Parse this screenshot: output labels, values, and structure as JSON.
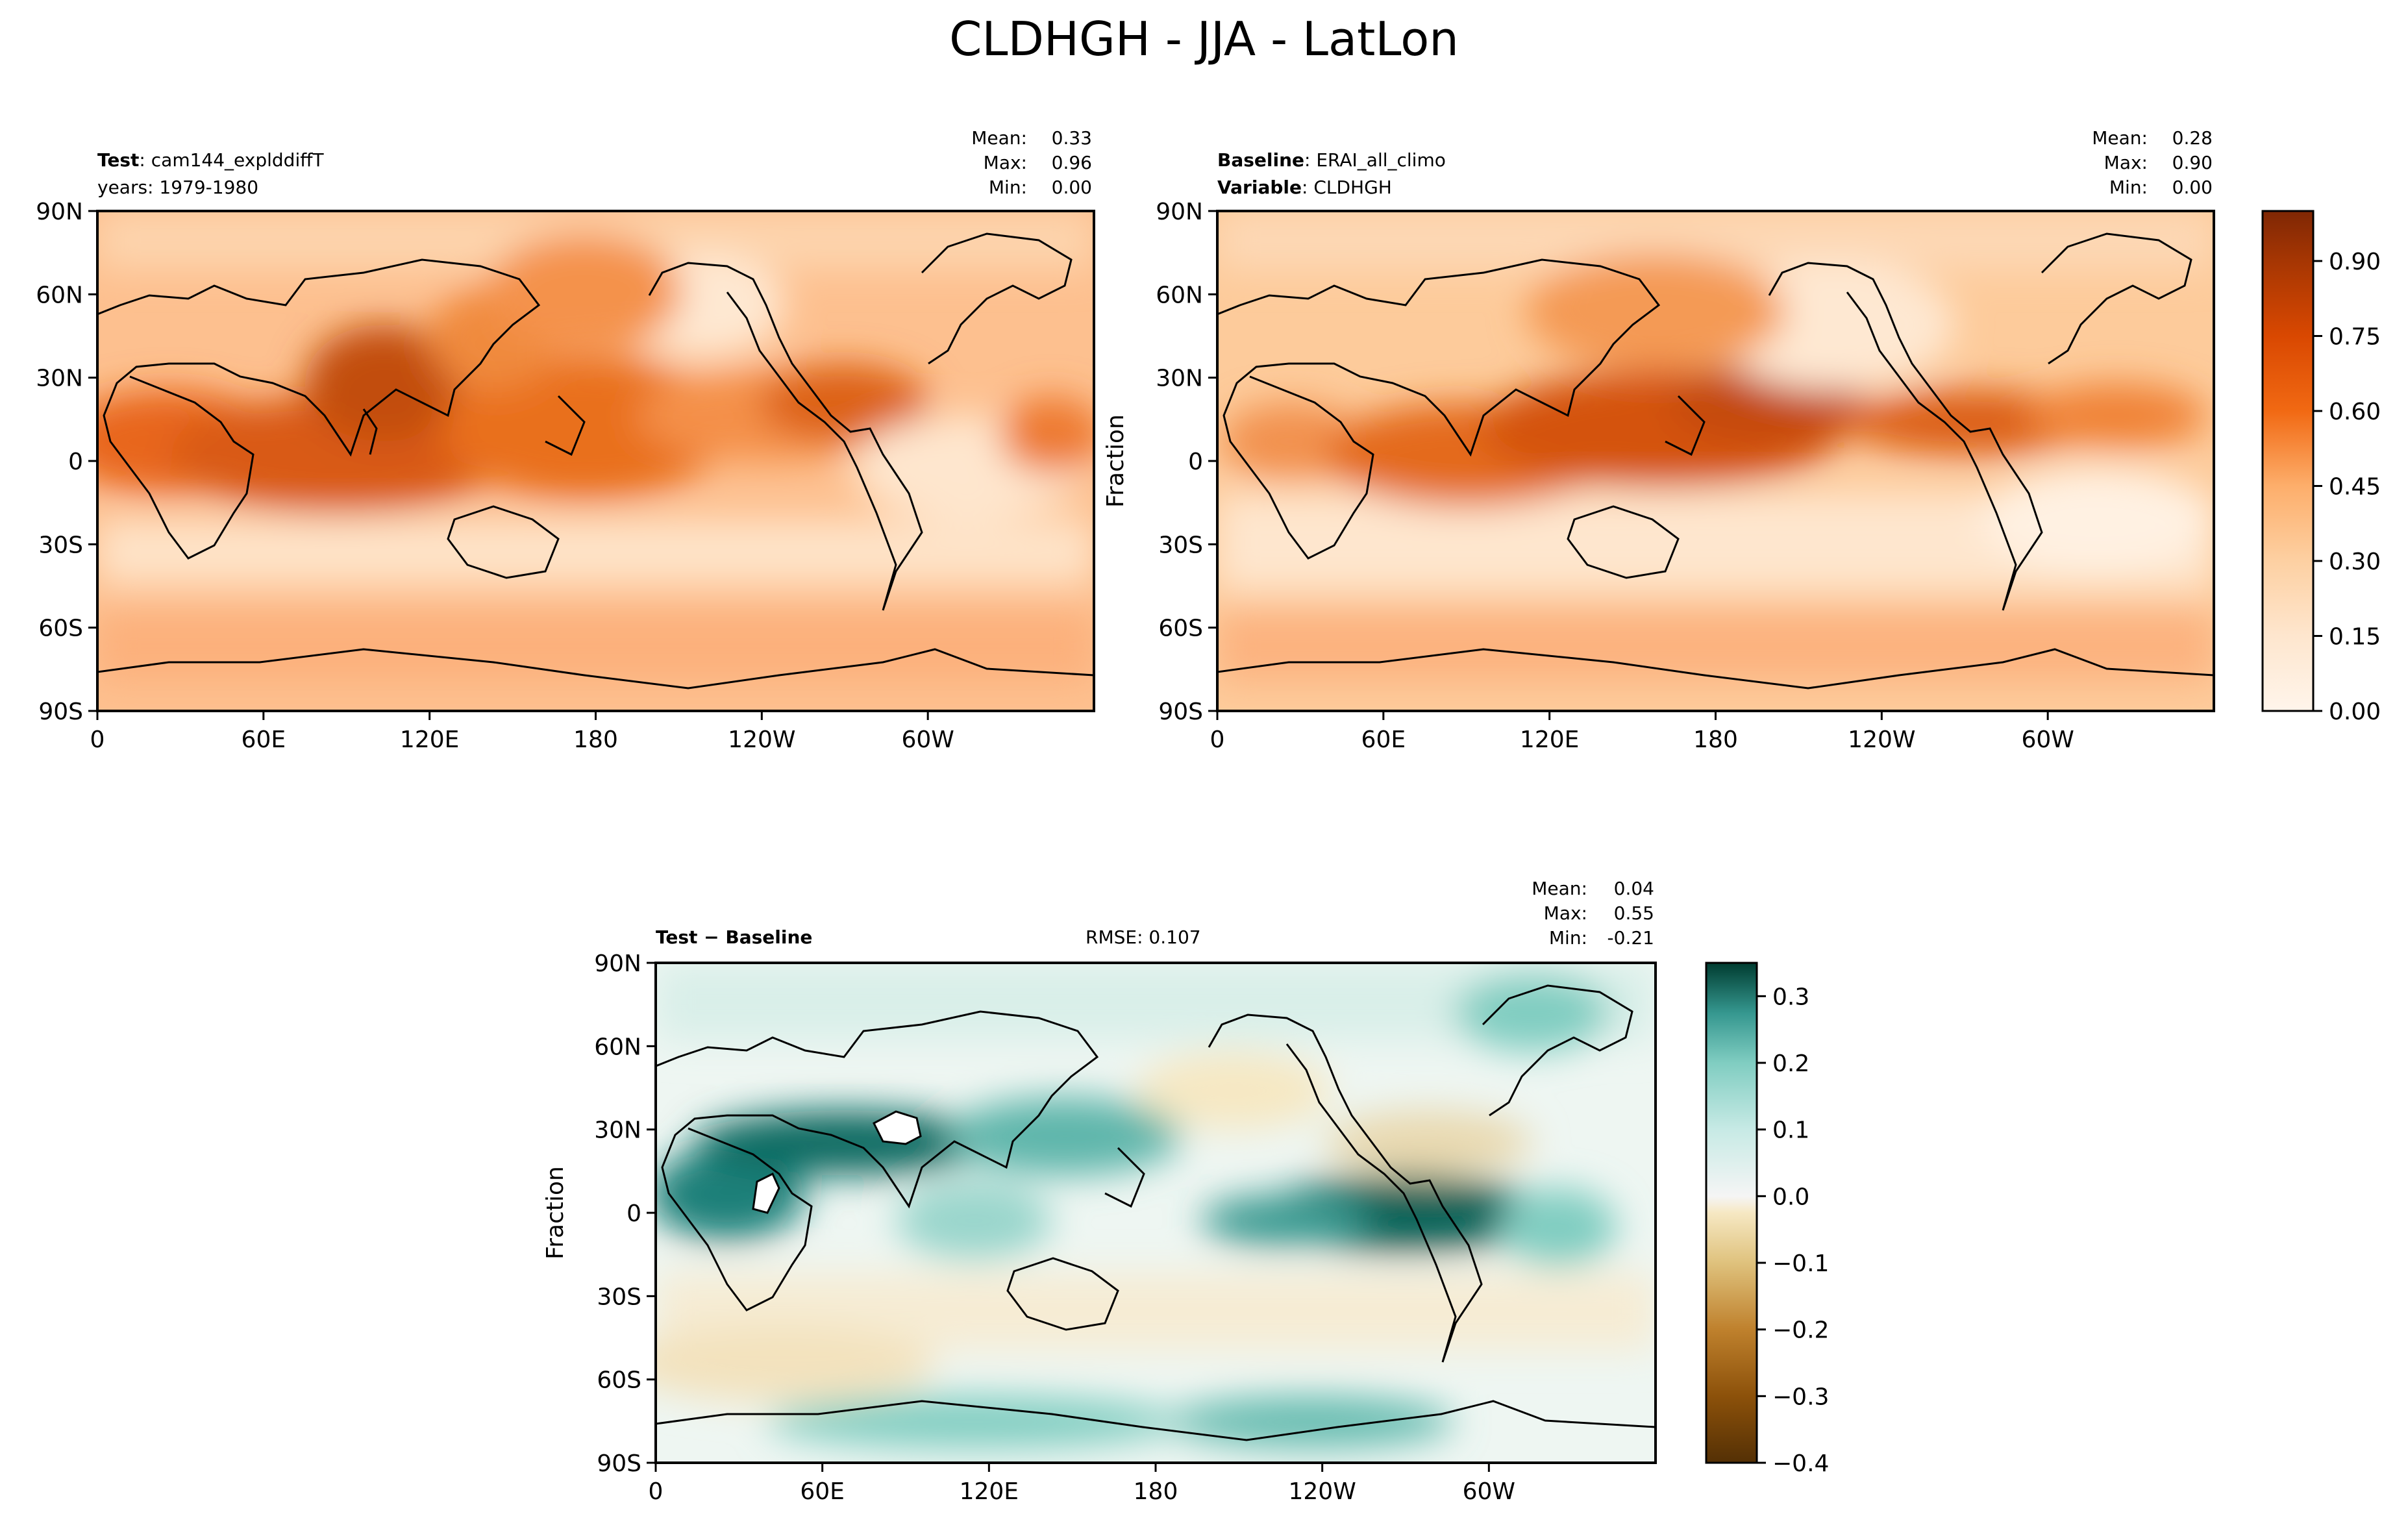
{
  "figure_title": "CLDHGH - JJA - LatLon",
  "chart_data": [
    {
      "type": "heatmap",
      "panel": "test",
      "left_label_bold": "Test",
      "left_label_value": "cam144_explddiffT",
      "left_label_line2": "years: 1979-1980",
      "stats": [
        {
          "label": "Mean:",
          "value": "0.33"
        },
        {
          "label": "Max:",
          "value": "0.96"
        },
        {
          "label": "Min:",
          "value": "0.00"
        }
      ],
      "ylabel": "",
      "x_ticks": [
        "0",
        "60E",
        "120E",
        "180",
        "120W",
        "60W"
      ],
      "y_ticks": [
        "90N",
        "60N",
        "30N",
        "0",
        "30S",
        "60S",
        "90S"
      ],
      "xlim": [
        0,
        360
      ],
      "ylim": [
        -90,
        90
      ],
      "colormap": "Oranges",
      "clim": [
        0,
        1
      ]
    },
    {
      "type": "heatmap",
      "panel": "baseline",
      "left_label_bold": "Baseline",
      "left_label_value": "ERAI_all_climo",
      "left_label2_bold": "Variable",
      "left_label2_value": "CLDHGH",
      "stats": [
        {
          "label": "Mean:",
          "value": "0.28"
        },
        {
          "label": "Max:",
          "value": "0.90"
        },
        {
          "label": "Min:",
          "value": "0.00"
        }
      ],
      "ylabel": "Fraction",
      "x_ticks": [
        "0",
        "60E",
        "120E",
        "180",
        "120W",
        "60W"
      ],
      "y_ticks": [
        "90N",
        "60N",
        "30N",
        "0",
        "30S",
        "60S",
        "90S"
      ],
      "xlim": [
        0,
        360
      ],
      "ylim": [
        -90,
        90
      ],
      "colormap": "Oranges",
      "clim": [
        0,
        1
      ],
      "colorbar_ticks": [
        "0.00",
        "0.15",
        "0.30",
        "0.45",
        "0.60",
        "0.75",
        "0.90"
      ],
      "colorbar_values": [
        0.0,
        0.15,
        0.3,
        0.45,
        0.6,
        0.75,
        0.9
      ]
    },
    {
      "type": "heatmap",
      "panel": "diff",
      "left_label": "Test − Baseline",
      "rmse_label": "RMSE: 0.107",
      "stats": [
        {
          "label": "Mean:",
          "value": "0.04"
        },
        {
          "label": "Max:",
          "value": "0.55"
        },
        {
          "label": "Min:",
          "value": "-0.21"
        }
      ],
      "ylabel": "Fraction",
      "x_ticks": [
        "0",
        "60E",
        "120E",
        "180",
        "120W",
        "60W"
      ],
      "y_ticks": [
        "90N",
        "60N",
        "30N",
        "0",
        "30S",
        "60S",
        "90S"
      ],
      "xlim": [
        0,
        360
      ],
      "ylim": [
        -90,
        90
      ],
      "colormap": "BrBG",
      "clim": [
        -0.4,
        0.35
      ],
      "colorbar_ticks": [
        "0.3",
        "0.2",
        "0.1",
        "0.0",
        "−0.1",
        "−0.2",
        "−0.3",
        "−0.4"
      ],
      "colorbar_values": [
        0.3,
        0.2,
        0.1,
        0.0,
        -0.1,
        -0.2,
        -0.3,
        -0.4
      ]
    }
  ],
  "colors": {
    "oranges": [
      "#fff5eb",
      "#fee6ce",
      "#fdd0a2",
      "#fdae6b",
      "#fd8d3c",
      "#f16913",
      "#d94801",
      "#a63603",
      "#7f2704"
    ],
    "brbg_pos": [
      "#f5f5f5",
      "#c7eae5",
      "#80cdc1",
      "#35978f",
      "#01665e",
      "#003c30"
    ],
    "brbg_neg": [
      "#f5f5f5",
      "#f6e8c3",
      "#dfc27d",
      "#bf812d",
      "#8c510a",
      "#543005"
    ]
  }
}
